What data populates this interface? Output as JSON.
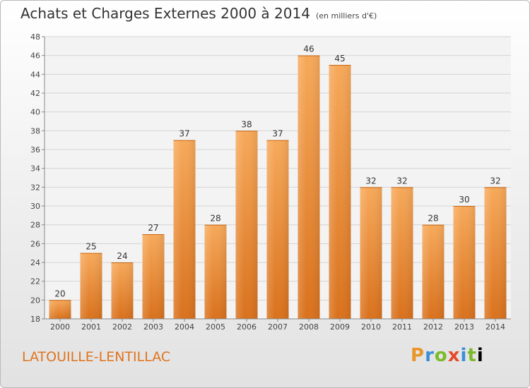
{
  "title": "Achats et Charges Externes 2000 à 2014",
  "subtitle": "(en milliers d'€)",
  "commune": "LATOUILLE-LENTILLAC",
  "logo": [
    "P",
    "r",
    "o",
    "x",
    "i",
    "t",
    "i"
  ],
  "colors": {
    "bar_top": "#f7a95a",
    "bar_bottom": "#d9711c",
    "accent": "#e0741e"
  },
  "chart_data": {
    "type": "bar",
    "categories": [
      "2000",
      "2001",
      "2002",
      "2003",
      "2004",
      "2005",
      "2006",
      "2007",
      "2008",
      "2009",
      "2010",
      "2011",
      "2012",
      "2013",
      "2014"
    ],
    "values": [
      20,
      25,
      24,
      27,
      37,
      28,
      38,
      37,
      46,
      45,
      32,
      32,
      28,
      30,
      32
    ],
    "ylim": [
      18,
      48
    ],
    "yticks": [
      18,
      20,
      22,
      24,
      26,
      28,
      30,
      32,
      34,
      36,
      38,
      40,
      42,
      44,
      46,
      48
    ],
    "grid": true
  }
}
